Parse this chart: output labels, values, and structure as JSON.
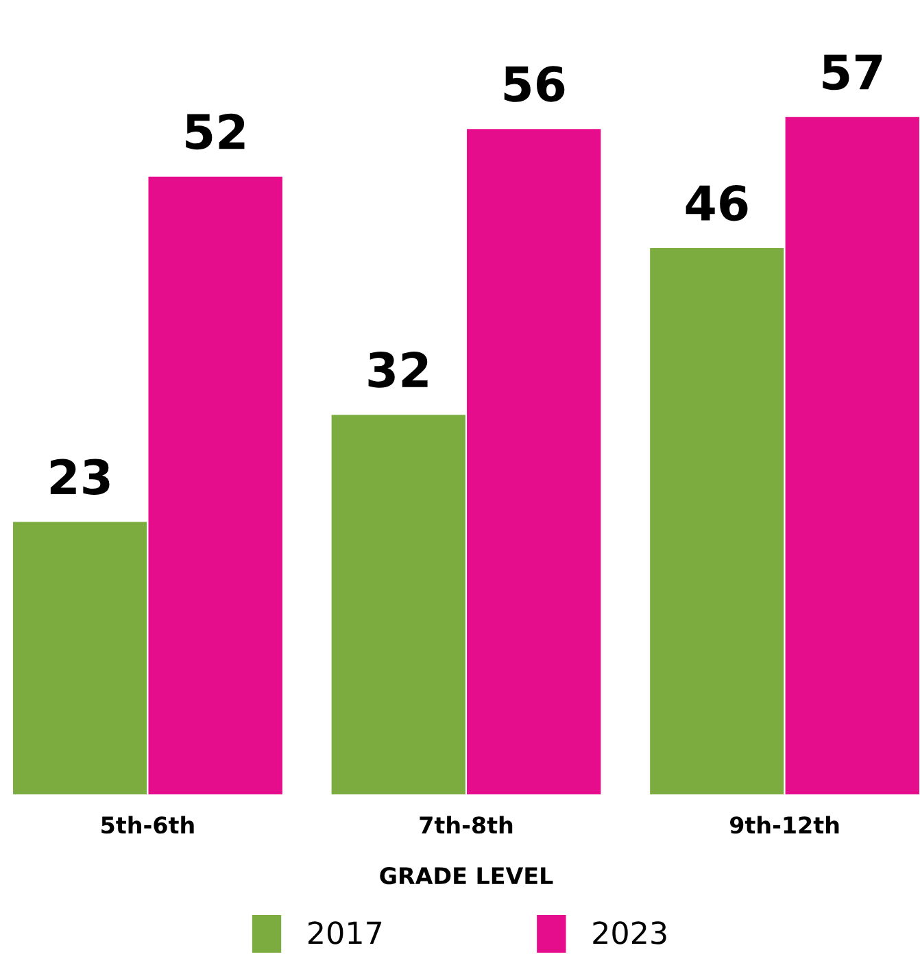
{
  "chart_data": {
    "type": "bar",
    "xlabel": "GRADE LEVEL",
    "categories": [
      "5th-6th",
      "7th-8th",
      "9th-12th"
    ],
    "series": [
      {
        "name": "2017",
        "color": "#7cac3f",
        "values": [
          23,
          32,
          46
        ]
      },
      {
        "name": "2023",
        "color": "#e60d8c",
        "values": [
          52,
          56,
          57
        ]
      }
    ],
    "data_labels": true,
    "tick_labels": "x",
    "grid": false,
    "legend": "bottom"
  }
}
